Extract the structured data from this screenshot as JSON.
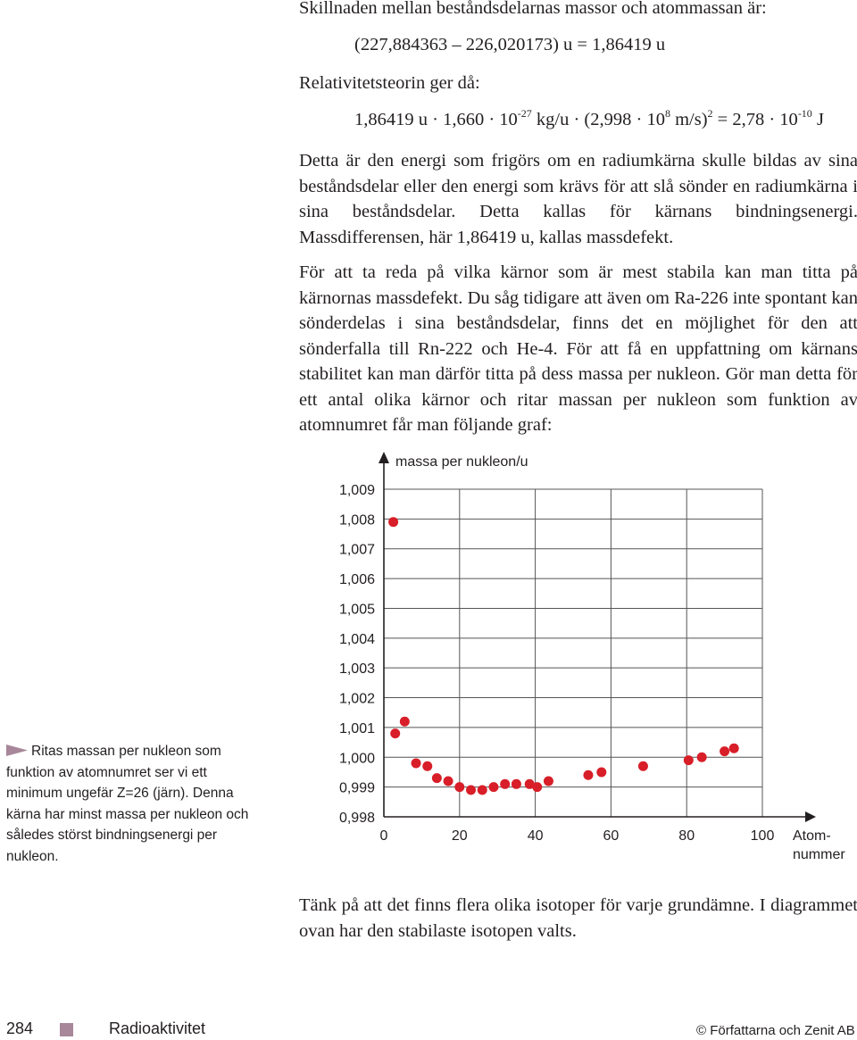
{
  "text": {
    "line1": "Skillnaden mellan beståndsdelarnas massor och atommassan är:",
    "eq1": "(227,884363 – 226,020173) u = 1,86419 u",
    "line2": "Relativitetsteorin ger då:",
    "eq2": {
      "p1": "1,86419 u · 1,660 · 10",
      "e1": "-27",
      "p2": " kg/u · (2,998 · 10",
      "e2": "8",
      "p3": " m/s)",
      "e3": "2",
      "p4": " = 2,78 · 10",
      "e4": "-10",
      "p5": " J"
    },
    "para1": "Detta är den energi som frigörs om en radiumkärna skulle bildas av sina beståndsdelar eller den energi som krävs för att slå sönder en radiumkärna i sina beståndsdelar. Detta kallas för kärnans bindningsenergi. Massdifferensen, här 1,86419 u, kallas massdefekt.",
    "para2": "För att ta reda på vilka kärnor som är mest stabila kan man titta på kärnornas massdefekt. Du såg tidigare att även om Ra-226 inte spontant kan sönderdelas i sina beståndsdelar, finns det en möjlighet för den att sönderfalla till Rn-222 och He-4. För att få en uppfattning om kärnans stabilitet kan man därför titta på dess massa per nukleon. Gör man detta för ett antal olika kärnor och ritar massan per nukleon som funktion av atomnumret får man följande graf:",
    "para3": "Tänk på att det finns flera olika isotoper för varje grundämne. I diagrammet ovan har den stabilaste isotopen valts.",
    "sidenote": "Ritas massan per nukleon som funktion av atomnumret ser vi ett minimum ungefär Z=26 (järn). Denna kärna har minst massa per nukleon och således störst bindningsenergi per nukleon."
  },
  "footer": {
    "page_number": "284",
    "chapter": "Radioaktivitet",
    "copyright": "© Författarna och Zenit AB"
  },
  "colors": {
    "text": "#231f20",
    "marker": "#d81e28",
    "accent": "#a8879a",
    "grid": "#555555"
  },
  "chart_data": {
    "type": "scatter",
    "ylabel": "massa per nukleon/u",
    "xlabel_line1": "Atom-",
    "xlabel_line2": "nummer",
    "xlim": [
      0,
      100
    ],
    "ylim": [
      0.998,
      1.009
    ],
    "x_ticks": [
      "0",
      "20",
      "40",
      "60",
      "80",
      "100"
    ],
    "x_tick_values": [
      0,
      20,
      40,
      60,
      80,
      100
    ],
    "y_ticks": [
      "0,998",
      "0,999",
      "1,000",
      "1,001",
      "1,002",
      "1,003",
      "1,004",
      "1,005",
      "1,006",
      "1,007",
      "1,008",
      "1,009"
    ],
    "y_tick_values": [
      0.998,
      0.999,
      1.0,
      1.001,
      1.002,
      1.003,
      1.004,
      1.005,
      1.006,
      1.007,
      1.008,
      1.009
    ],
    "grid": true,
    "points": [
      {
        "x": 2.5,
        "y": 1.0079
      },
      {
        "x": 3,
        "y": 1.0008
      },
      {
        "x": 5.5,
        "y": 1.0012
      },
      {
        "x": 8.5,
        "y": 0.9998
      },
      {
        "x": 11.5,
        "y": 0.9997
      },
      {
        "x": 14,
        "y": 0.9993
      },
      {
        "x": 17,
        "y": 0.9992
      },
      {
        "x": 20,
        "y": 0.999
      },
      {
        "x": 23,
        "y": 0.9989
      },
      {
        "x": 26,
        "y": 0.9989
      },
      {
        "x": 29,
        "y": 0.999
      },
      {
        "x": 32,
        "y": 0.9991
      },
      {
        "x": 35,
        "y": 0.9991
      },
      {
        "x": 38.5,
        "y": 0.9991
      },
      {
        "x": 40.5,
        "y": 0.999
      },
      {
        "x": 43.5,
        "y": 0.9992
      },
      {
        "x": 54,
        "y": 0.9994
      },
      {
        "x": 57.5,
        "y": 0.9995
      },
      {
        "x": 68.5,
        "y": 0.9997
      },
      {
        "x": 80.5,
        "y": 0.9999
      },
      {
        "x": 84,
        "y": 1.0
      },
      {
        "x": 90,
        "y": 1.0002
      },
      {
        "x": 92.5,
        "y": 1.0003
      }
    ]
  }
}
